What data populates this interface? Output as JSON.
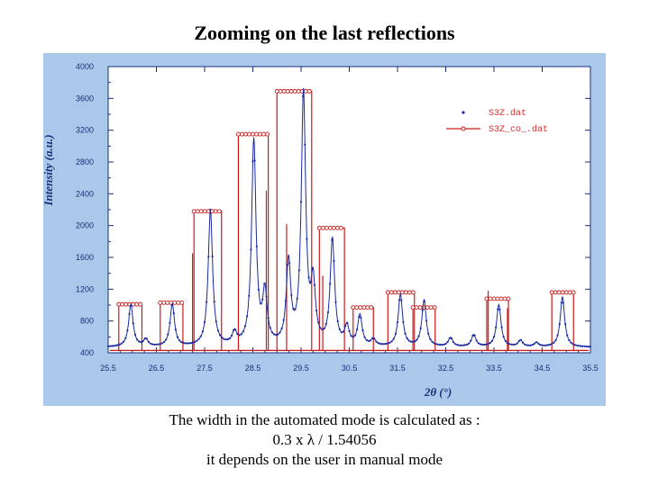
{
  "slide": {
    "title": "Zooming on the last reflections",
    "caption_lines": [
      "The width in the automated mode is calculated as :",
      "0.3 x λ / 1.54056",
      "it depends on the user in manual mode"
    ]
  },
  "chart_data": {
    "type": "line",
    "title": "",
    "xlabel": "2θ (°)",
    "ylabel": "Intensity (a.u.)",
    "xlim": [
      25.5,
      35.5
    ],
    "ylim": [
      400,
      4000
    ],
    "x_ticks": [
      25.5,
      26.5,
      27.5,
      28.5,
      29.5,
      30.5,
      31.5,
      32.5,
      33.5,
      34.5,
      35.5
    ],
    "x_tick_labels": [
      "25.5",
      "26.5",
      "27.5",
      "28.5",
      "29.5",
      "30.5",
      "31.5",
      "32.5",
      "33.5",
      "34.5",
      "35.5"
    ],
    "y_ticks": [
      400,
      800,
      1200,
      1600,
      2000,
      2400,
      2800,
      3200,
      3600,
      4000
    ],
    "y_tick_labels": [
      "400",
      "800",
      "1200",
      "1600",
      "2000",
      "2400",
      "2800",
      "3200",
      "3600",
      "4000"
    ],
    "legend": {
      "placement": "top-right",
      "entries": [
        {
          "label": "S3Z.dat",
          "style": "dots",
          "color": "#1a2aa0"
        },
        {
          "label": "S3Z_co_.dat",
          "style": "line-diamond",
          "color": "#cc1b1b"
        }
      ]
    },
    "colors": {
      "observed": "#1a2aa0",
      "calculated": "#cc1b1b",
      "plot_bg": "#ffffff",
      "frame_bg": "#a9c8ea"
    },
    "series": [
      {
        "name": "S3Z.dat",
        "kind": "observed_pattern",
        "background": 470,
        "peaks": [
          {
            "x": 25.97,
            "height": 1000
          },
          {
            "x": 26.28,
            "height": 560
          },
          {
            "x": 26.83,
            "height": 1000
          },
          {
            "x": 27.62,
            "height": 2180
          },
          {
            "x": 28.12,
            "height": 620
          },
          {
            "x": 28.52,
            "height": 3050
          },
          {
            "x": 28.75,
            "height": 1100
          },
          {
            "x": 29.24,
            "height": 1500
          },
          {
            "x": 29.55,
            "height": 3620
          },
          {
            "x": 29.75,
            "height": 1200
          },
          {
            "x": 30.15,
            "height": 1800
          },
          {
            "x": 30.45,
            "height": 700
          },
          {
            "x": 30.72,
            "height": 850
          },
          {
            "x": 31.0,
            "height": 550
          },
          {
            "x": 31.56,
            "height": 1120
          },
          {
            "x": 32.05,
            "height": 1050
          },
          {
            "x": 32.6,
            "height": 580
          },
          {
            "x": 33.08,
            "height": 620
          },
          {
            "x": 33.6,
            "height": 1000
          },
          {
            "x": 34.05,
            "height": 550
          },
          {
            "x": 34.38,
            "height": 520
          },
          {
            "x": 34.92,
            "height": 1100
          }
        ]
      },
      {
        "name": "S3Z_co_.dat",
        "kind": "peak_boxes",
        "baseline": 430,
        "boxes": [
          {
            "x1": 25.72,
            "x2": 26.2,
            "y": 1010
          },
          {
            "x1": 26.58,
            "x2": 27.05,
            "y": 1030
          },
          {
            "x1": 27.28,
            "x2": 27.85,
            "y": 2180
          },
          {
            "x1": 28.2,
            "x2": 28.82,
            "y": 3150
          },
          {
            "x1": 29.0,
            "x2": 29.72,
            "y": 3690
          },
          {
            "x1": 29.88,
            "x2": 30.4,
            "y": 1970
          },
          {
            "x1": 30.58,
            "x2": 31.0,
            "y": 970
          },
          {
            "x1": 31.3,
            "x2": 31.85,
            "y": 1160
          },
          {
            "x1": 31.82,
            "x2": 32.28,
            "y": 970
          },
          {
            "x1": 33.35,
            "x2": 33.8,
            "y": 1080
          },
          {
            "x1": 34.7,
            "x2": 35.15,
            "y": 1160
          }
        ],
        "spikes": [
          {
            "x": 27.25,
            "y": 1650
          },
          {
            "x": 28.78,
            "y": 2440
          },
          {
            "x": 29.2,
            "y": 2020
          },
          {
            "x": 29.95,
            "y": 1370
          },
          {
            "x": 33.38,
            "y": 1180
          },
          {
            "x": 33.78,
            "y": 960
          }
        ]
      }
    ]
  }
}
